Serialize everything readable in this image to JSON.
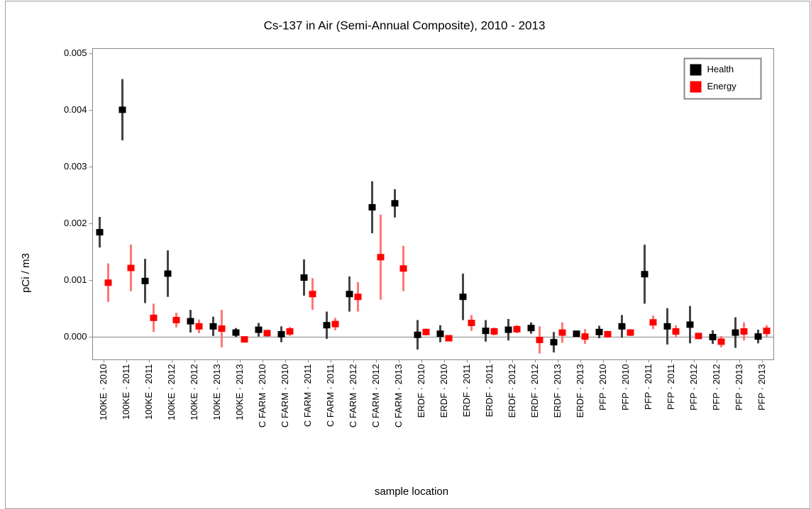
{
  "chart_data": {
    "type": "errorbar",
    "title": "Cs-137 in Air (Semi-Annual Composite), 2010 - 2013",
    "x_label": "sample location",
    "y_label": "pCi / m3",
    "categories": [
      "100KE · 2010",
      "100KE · 2011",
      "100KE · 2011",
      "100KE · 2012",
      "100KE · 2012",
      "100KE · 2013",
      "100KE · 2013",
      "C FARM · 2010",
      "C FARM · 2010",
      "C FARM · 2011",
      "C FARM · 2011",
      "C FARM · 2012",
      "C FARM · 2012",
      "C FARM · 2013",
      "ERDF · 2010",
      "ERDF · 2010",
      "ERDF · 2011",
      "ERDF · 2011",
      "ERDF · 2012",
      "ERDF · 2012",
      "ERDF · 2013",
      "ERDF · 2013",
      "PFP · 2010",
      "PFP · 2010",
      "PFP · 2011",
      "PFP · 2011",
      "PFP · 2012",
      "PFP · 2012",
      "PFP · 2013",
      "PFP · 2013"
    ],
    "series": [
      {
        "name": "Health",
        "color": "#000000",
        "error_color": "#444444",
        "values": [
          0.00185,
          0.00401,
          0.00099,
          0.00112,
          0.00028,
          0.00019,
          8e-05,
          0.00013,
          5e-05,
          0.00105,
          0.00021,
          0.00076,
          0.00229,
          0.00236,
          4e-05,
          6e-05,
          0.00071,
          0.00011,
          0.00013,
          0.00016,
          -9e-05,
          6e-05,
          9e-05,
          0.00019,
          0.00111,
          0.00019,
          0.00022,
          0.0,
          8e-05,
          1e-05
        ],
        "errors": [
          0.00027,
          0.00054,
          0.00039,
          0.00041,
          0.0002,
          0.00017,
          8e-05,
          0.00012,
          0.00014,
          0.00032,
          0.00024,
          0.00031,
          0.00046,
          0.00025,
          0.00026,
          0.00015,
          0.00041,
          0.00019,
          0.00019,
          0.0001,
          0.00018,
          5e-05,
          0.00011,
          0.0002,
          0.00052,
          0.00032,
          0.00033,
          0.00012,
          0.00027,
          0.00012
        ]
      },
      {
        "name": "Energy",
        "color": "#ff0000",
        "error_color": "#ff7777",
        "values": [
          0.00096,
          0.00122,
          0.00034,
          0.0003,
          0.00019,
          0.00015,
          -4e-05,
          7e-05,
          0.0001,
          0.00076,
          0.00023,
          0.00071,
          0.00141,
          0.00121,
          9e-05,
          -2e-05,
          0.00025,
          0.0001,
          0.00014,
          -5e-05,
          8e-05,
          1e-05,
          5e-05,
          8e-05,
          0.00026,
          0.0001,
          2e-05,
          -8e-05,
          0.0001,
          0.00011
        ],
        "errors": [
          0.00034,
          0.00041,
          0.00025,
          0.00013,
          0.00012,
          0.00033,
          4e-05,
          6e-05,
          8e-05,
          0.00028,
          0.00011,
          0.00026,
          0.00075,
          0.0004,
          6e-05,
          5e-05,
          0.00014,
          7e-05,
          7e-05,
          0.00024,
          0.00018,
          0.00013,
          6e-05,
          6e-05,
          0.00012,
          0.00011,
          4e-05,
          0.0001,
          0.00016,
          0.0001
        ]
      }
    ],
    "ylim": [
      -0.0004,
      0.00509
    ],
    "yticks": [
      {
        "value": 0,
        "label": "0.000"
      },
      {
        "value": 0.001,
        "label": "0.001"
      },
      {
        "value": 0.002,
        "label": "0.002"
      },
      {
        "value": 0.003,
        "label": "0.003"
      },
      {
        "value": 0.004,
        "label": "0.004"
      },
      {
        "value": 0.005,
        "label": "0.005"
      }
    ],
    "zero_line": true,
    "legend": "top-right"
  }
}
